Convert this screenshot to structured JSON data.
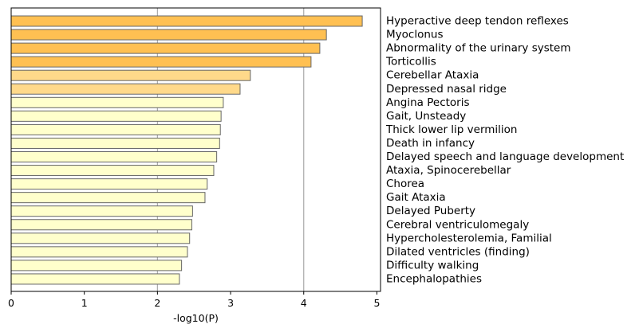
{
  "chart_data": {
    "type": "bar",
    "orientation": "horizontal",
    "categories": [
      "Hyperactive deep tendon reflexes",
      "Myoclonus",
      "Abnormality of the urinary system",
      "Torticollis",
      "Cerebellar Ataxia",
      "Depressed nasal ridge",
      "Angina Pectoris",
      "Gait, Unsteady",
      "Thick lower lip vermilion",
      "Death in infancy",
      "Delayed speech and language development",
      "Ataxia, Spinocerebellar",
      "Chorea",
      "Gait Ataxia",
      "Delayed Puberty",
      "Cerebral ventriculomegaly",
      "Hypercholesterolemia, Familial",
      "Dilated ventricles (finding)",
      "Difficulty walking",
      "Encephalopathies"
    ],
    "values": [
      4.8,
      4.31,
      4.22,
      4.1,
      3.27,
      3.13,
      2.9,
      2.87,
      2.86,
      2.85,
      2.81,
      2.77,
      2.68,
      2.65,
      2.48,
      2.47,
      2.44,
      2.41,
      2.33,
      2.3
    ],
    "bar_colors": [
      "#ffc052",
      "#ffc052",
      "#ffc052",
      "#ffc052",
      "#ffd98a",
      "#ffd98a",
      "#ffffcc",
      "#ffffcc",
      "#ffffcc",
      "#ffffcc",
      "#ffffcc",
      "#ffffcc",
      "#ffffcc",
      "#ffffcc",
      "#ffffcc",
      "#ffffcc",
      "#ffffcc",
      "#ffffcc",
      "#ffffcc",
      "#ffffcc"
    ],
    "bar_edge_color": "#666666",
    "xlabel": "-log10(P)",
    "ylabel": "",
    "title": "",
    "xlim": [
      0,
      5.05
    ],
    "xticks": [
      0,
      1,
      2,
      3,
      4,
      5
    ],
    "vertical_gridlines": [
      2,
      4
    ],
    "gridline_color": "#aaaaaa",
    "category_labels_side": "right"
  }
}
